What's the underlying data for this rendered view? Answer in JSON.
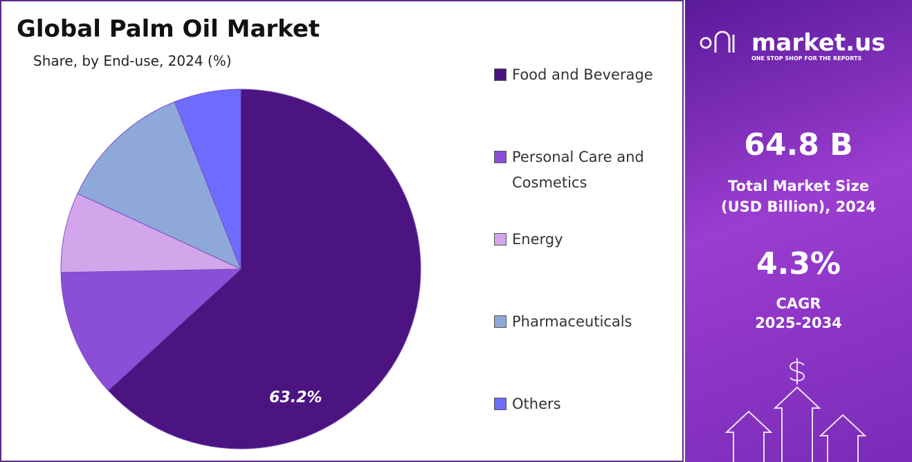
{
  "chart_data": {
    "type": "pie",
    "title": "Global Palm Oil Market",
    "subtitle": "Share, by End-use, 2024 (%)",
    "categories": [
      "Food and Beverage",
      "Personal Care and Cosmetics",
      "Energy",
      "Pharmaceuticals",
      "Others"
    ],
    "values": [
      63.2,
      11.5,
      7.2,
      12.1,
      6.0
    ],
    "value_labels": [
      "63.2%",
      null,
      null,
      null,
      null
    ],
    "colors": [
      "#4b1480",
      "#8a4fd6",
      "#d3a6ec",
      "#8fa8da",
      "#6e6bff"
    ],
    "legend": "right"
  },
  "panel": {
    "brand": "market.us",
    "tagline": "ONE STOP SHOP FOR THE REPORTS",
    "market_size": "64.8 B",
    "market_size_label": "Total Market Size (USD Billion), 2024",
    "cagr": "4.3%",
    "cagr_label": "CAGR",
    "cagr_period": "2025-2034"
  }
}
